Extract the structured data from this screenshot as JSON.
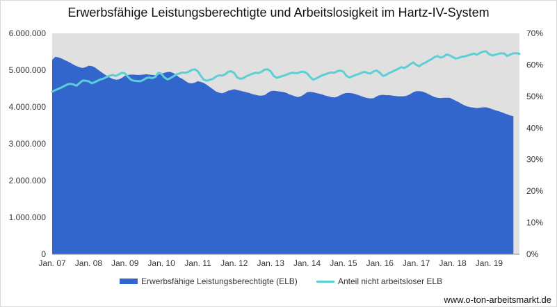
{
  "chart_data": {
    "type": "area",
    "title": "Erwerbsfähige Leistungsberechtigte und Arbeitslosigkeit im Hartz-IV-System",
    "xlabel": "",
    "ylabel": "",
    "x_tick_labels": [
      "Jan. 07",
      "Jan. 08",
      "Jan. 09",
      "Jan. 10",
      "Jan. 11",
      "Jan. 12",
      "Jan. 13",
      "Jan. 14",
      "Jan. 15",
      "Jan. 16",
      "Jan. 17",
      "Jan. 18",
      "Jan. 19"
    ],
    "y_left_tick_labels": [
      "0",
      "1.000.000",
      "2.000.000",
      "3.000.000",
      "4.000.000",
      "5.000.000",
      "6.000.000"
    ],
    "y_right_tick_labels": [
      "0%",
      "10%",
      "20%",
      "30%",
      "40%",
      "50%",
      "60%",
      "70%"
    ],
    "y_left_range": [
      0,
      6000000
    ],
    "y_right_range": [
      0,
      70
    ],
    "grid": false,
    "legend_position": "bottom",
    "x_start": "2007-01",
    "x_step": "1 month",
    "series": [
      {
        "name": "Erwerbsfähige Leistungsberechtigte (ELB)",
        "type": "area",
        "axis": "left",
        "color": "#3366cc",
        "values": [
          5280000,
          5360000,
          5350000,
          5320000,
          5280000,
          5240000,
          5200000,
          5150000,
          5110000,
          5080000,
          5060000,
          5080000,
          5120000,
          5110000,
          5080000,
          5020000,
          4960000,
          4900000,
          4850000,
          4800000,
          4760000,
          4740000,
          4750000,
          4790000,
          4850000,
          4870000,
          4880000,
          4880000,
          4870000,
          4870000,
          4880000,
          4890000,
          4880000,
          4870000,
          4860000,
          4880000,
          4900000,
          4930000,
          4950000,
          4950000,
          4920000,
          4860000,
          4800000,
          4760000,
          4700000,
          4650000,
          4640000,
          4660000,
          4700000,
          4680000,
          4650000,
          4600000,
          4540000,
          4480000,
          4420000,
          4390000,
          4370000,
          4400000,
          4440000,
          4460000,
          4480000,
          4460000,
          4440000,
          4420000,
          4400000,
          4380000,
          4350000,
          4330000,
          4310000,
          4310000,
          4320000,
          4380000,
          4430000,
          4440000,
          4430000,
          4420000,
          4410000,
          4390000,
          4350000,
          4320000,
          4290000,
          4270000,
          4290000,
          4340000,
          4400000,
          4410000,
          4400000,
          4380000,
          4360000,
          4340000,
          4310000,
          4290000,
          4270000,
          4260000,
          4280000,
          4320000,
          4360000,
          4380000,
          4380000,
          4370000,
          4350000,
          4320000,
          4290000,
          4260000,
          4240000,
          4230000,
          4240000,
          4290000,
          4320000,
          4330000,
          4320000,
          4320000,
          4310000,
          4300000,
          4290000,
          4290000,
          4290000,
          4310000,
          4350000,
          4400000,
          4430000,
          4430000,
          4420000,
          4390000,
          4350000,
          4310000,
          4270000,
          4250000,
          4240000,
          4250000,
          4250000,
          4250000,
          4210000,
          4170000,
          4130000,
          4080000,
          4040000,
          4010000,
          3990000,
          3980000,
          3970000,
          3980000,
          3990000,
          3990000,
          3970000,
          3940000,
          3910000,
          3890000,
          3860000,
          3830000,
          3800000,
          3770000,
          3750000
        ]
      },
      {
        "name": "Anteil nicht arbeitsloser ELB",
        "type": "line",
        "axis": "right",
        "unit": "%",
        "color": "#5ccfd6",
        "values": [
          51.5,
          52.0,
          52.4,
          52.8,
          53.3,
          53.8,
          54.0,
          53.8,
          53.4,
          54.2,
          55.0,
          55.0,
          54.8,
          54.2,
          54.5,
          55.0,
          55.4,
          55.7,
          56.2,
          56.6,
          56.8,
          56.5,
          57.0,
          57.5,
          57.3,
          56.2,
          55.3,
          55.0,
          54.9,
          54.8,
          55.2,
          55.8,
          56.0,
          55.8,
          56.2,
          57.5,
          57.2,
          56.0,
          55.4,
          55.8,
          56.4,
          57.0,
          57.3,
          57.6,
          57.5,
          57.8,
          58.4,
          58.6,
          58.0,
          56.5,
          55.3,
          55.0,
          55.3,
          55.6,
          56.3,
          56.7,
          56.6,
          57.0,
          57.8,
          58.0,
          57.4,
          56.0,
          55.6,
          55.8,
          56.4,
          56.8,
          57.2,
          57.5,
          57.4,
          57.8,
          58.5,
          58.6,
          58.0,
          56.5,
          55.9,
          56.2,
          56.5,
          56.8,
          57.2,
          57.5,
          57.4,
          57.4,
          57.8,
          57.8,
          57.3,
          56.2,
          55.3,
          55.7,
          56.2,
          56.7,
          57.0,
          57.4,
          57.6,
          57.5,
          58.0,
          58.2,
          57.8,
          56.5,
          56.0,
          56.4,
          56.8,
          57.1,
          57.5,
          57.8,
          57.4,
          57.3,
          58.0,
          58.2,
          57.5,
          56.5,
          56.8,
          57.4,
          57.8,
          58.3,
          58.7,
          59.3,
          59.0,
          59.5,
          60.2,
          60.8,
          60.0,
          59.6,
          60.3,
          60.7,
          61.3,
          61.8,
          62.5,
          62.8,
          62.3,
          62.6,
          63.3,
          63.0,
          62.5,
          62.0,
          62.2,
          62.6,
          62.7,
          63.0,
          63.3,
          63.6,
          63.2,
          63.8,
          64.2,
          64.3,
          63.4,
          63.0,
          63.2,
          63.5,
          63.7,
          63.6,
          62.8,
          63.3,
          63.7,
          63.7,
          63.5
        ]
      }
    ]
  },
  "legend": {
    "area_label": "Erwerbsfähige Leistungsberechtigte (ELB)",
    "line_label": "Anteil nicht arbeitsloser ELB"
  },
  "source": "www.o-ton-arbeitsmarkt.de",
  "colors": {
    "plot_background": "#e0e0e0",
    "area": "#3366cc",
    "line": "#5ccfd6"
  }
}
